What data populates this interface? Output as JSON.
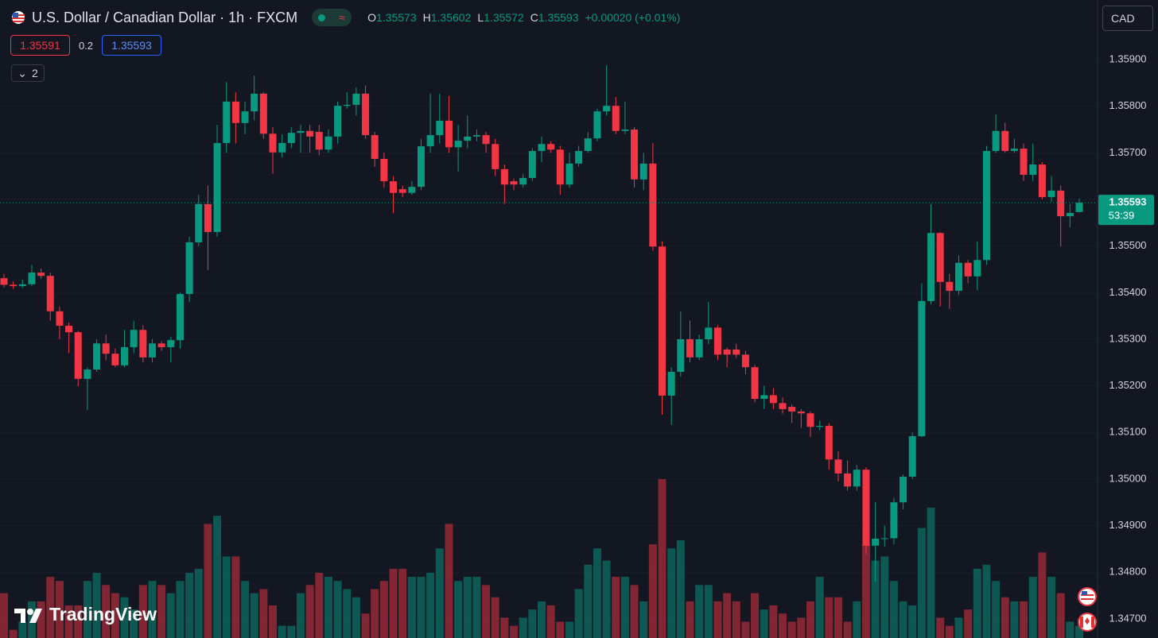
{
  "header": {
    "title": "U.S. Dollar / Canadian Dollar · 1h · FXCM",
    "ohlc": [
      {
        "label": "O",
        "value": 1.35573
      },
      {
        "label": "H",
        "value": 1.35602
      },
      {
        "label": "L",
        "value": 1.35572
      },
      {
        "label": "C",
        "value": 1.35593
      }
    ],
    "change": "+0.00020 (+0.01%)",
    "bid": 1.35591,
    "spread": 0.2,
    "ask": 1.35593,
    "indicators": 2,
    "currency": "CAD",
    "logo": "TradingView"
  },
  "chart_data": {
    "type": "candlestick",
    "up_color": "#089981",
    "down_color": "#f23645",
    "grid": true,
    "ylim": [
      1.34664,
      1.36028
    ],
    "yticks": [
      {
        "value": 1.359,
        "label": "1.35900"
      },
      {
        "value": 1.358,
        "label": "1.35800"
      },
      {
        "value": 1.357,
        "label": "1.35700"
      },
      {
        "value": 1.356,
        "label": "1.35600"
      },
      {
        "value": 1.355,
        "label": "1.35500"
      },
      {
        "value": 1.354,
        "label": "1.35400"
      },
      {
        "value": 1.353,
        "label": "1.35300"
      },
      {
        "value": 1.352,
        "label": "1.35200"
      },
      {
        "value": 1.351,
        "label": "1.35100"
      },
      {
        "value": 1.35,
        "label": "1.35000"
      },
      {
        "value": 1.349,
        "label": "1.34900"
      },
      {
        "value": 1.348,
        "label": "1.34800"
      },
      {
        "value": 1.347,
        "label": "1.34700"
      }
    ],
    "last_price": {
      "value": 1.35593,
      "countdown": "53:39"
    },
    "open": [
      1.35431,
      1.35417,
      1.35414,
      1.35418,
      1.35443,
      1.35436,
      1.3536,
      1.35329,
      1.35315,
      1.35215,
      1.35235,
      1.35291,
      1.35269,
      1.35244,
      1.35283,
      1.3532,
      1.35261,
      1.35291,
      1.35283,
      1.35298,
      1.35397,
      1.35508,
      1.3559,
      1.3553,
      1.35721,
      1.3581,
      1.35764,
      1.35789,
      1.35827,
      1.35741,
      1.35701,
      1.35721,
      1.35743,
      1.35747,
      1.35745,
      1.35707,
      1.35735,
      1.35801,
      1.35803,
      1.35827,
      1.35738,
      1.35687,
      1.35639,
      1.35622,
      1.35614,
      1.35627,
      1.35714,
      1.35738,
      1.35769,
      1.35712,
      1.35726,
      1.35735,
      1.35738,
      1.35719,
      1.35665,
      1.35639,
      1.35632,
      1.35646,
      1.35704,
      1.35719,
      1.35707,
      1.35632,
      1.35677,
      1.35704,
      1.35731,
      1.35789,
      1.35801,
      1.35747,
      1.3575,
      1.35643,
      1.35677,
      1.35499,
      1.35179,
      1.3523,
      1.353,
      1.35261,
      1.353,
      1.35325,
      1.35278,
      1.35278,
      1.35267,
      1.3524,
      1.35172,
      1.3518,
      1.35163,
      1.35155,
      1.35145,
      1.35141,
      1.35112,
      1.35114,
      1.35042,
      1.35012,
      1.34984,
      1.3502,
      1.34857,
      1.34872,
      1.34873,
      1.3495,
      1.35005,
      1.35092,
      1.35382,
      1.35528,
      1.35423,
      1.35404,
      1.35464,
      1.35435,
      1.3547,
      1.35704,
      1.35747,
      1.35704,
      1.35709,
      1.35653,
      1.35675,
      1.35605,
      1.35619,
      1.35564,
      1.35573
    ],
    "high": [
      1.3544,
      1.35424,
      1.35428,
      1.3546,
      1.35452,
      1.35443,
      1.3537,
      1.35336,
      1.35318,
      1.3524,
      1.353,
      1.3531,
      1.3528,
      1.3532,
      1.3534,
      1.3533,
      1.353,
      1.35296,
      1.35305,
      1.354,
      1.3552,
      1.3561,
      1.3563,
      1.3576,
      1.35852,
      1.3583,
      1.3581,
      1.35866,
      1.3583,
      1.35755,
      1.3574,
      1.35755,
      1.3576,
      1.3576,
      1.3576,
      1.3575,
      1.3581,
      1.3583,
      1.3584,
      1.35845,
      1.35745,
      1.357,
      1.3565,
      1.3563,
      1.3564,
      1.3573,
      1.35827,
      1.35827,
      1.35822,
      1.3576,
      1.3578,
      1.3575,
      1.35745,
      1.3573,
      1.35675,
      1.35645,
      1.35655,
      1.3571,
      1.35735,
      1.35725,
      1.35715,
      1.357,
      1.35715,
      1.35745,
      1.35795,
      1.35888,
      1.3582,
      1.3581,
      1.35755,
      1.357,
      1.35721,
      1.3551,
      1.3524,
      1.3536,
      1.3534,
      1.3531,
      1.3538,
      1.3533,
      1.35282,
      1.3529,
      1.35275,
      1.35245,
      1.352,
      1.35195,
      1.35175,
      1.3516,
      1.3515,
      1.35145,
      1.35125,
      1.3512,
      1.3506,
      1.3504,
      1.3503,
      1.35025,
      1.3495,
      1.349,
      1.3496,
      1.3501,
      1.351,
      1.3542,
      1.3559,
      1.3553,
      1.3544,
      1.3548,
      1.3547,
      1.3551,
      1.35715,
      1.35783,
      1.35765,
      1.3573,
      1.3572,
      1.3572,
      1.3568,
      1.3565,
      1.3563,
      1.3559,
      1.35602
    ],
    "low": [
      1.35411,
      1.35408,
      1.3541,
      1.35414,
      1.3543,
      1.3534,
      1.353,
      1.3527,
      1.35199,
      1.35148,
      1.3523,
      1.35255,
      1.3524,
      1.3524,
      1.3527,
      1.3525,
      1.3525,
      1.35275,
      1.3525,
      1.3528,
      1.3538,
      1.355,
      1.35448,
      1.3552,
      1.357,
      1.3572,
      1.3574,
      1.3577,
      1.3573,
      1.35655,
      1.3569,
      1.3571,
      1.357,
      1.357,
      1.35695,
      1.357,
      1.3572,
      1.35795,
      1.3578,
      1.3573,
      1.3567,
      1.35625,
      1.3557,
      1.35605,
      1.3561,
      1.3562,
      1.357,
      1.3572,
      1.357,
      1.3566,
      1.3571,
      1.35725,
      1.357,
      1.3565,
      1.3559,
      1.3562,
      1.35625,
      1.3564,
      1.3568,
      1.357,
      1.3561,
      1.35625,
      1.3567,
      1.357,
      1.35725,
      1.3578,
      1.3574,
      1.3574,
      1.35625,
      1.3562,
      1.3549,
      1.35138,
      1.35116,
      1.3522,
      1.3525,
      1.35255,
      1.3529,
      1.35255,
      1.3524,
      1.3526,
      1.35225,
      1.35165,
      1.3515,
      1.3515,
      1.3514,
      1.3512,
      1.3511,
      1.3509,
      1.35105,
      1.3502,
      1.34995,
      1.34975,
      1.34975,
      1.3484,
      1.3478,
      1.34855,
      1.3486,
      1.34935,
      1.35,
      1.3509,
      1.35375,
      1.3537,
      1.35365,
      1.35395,
      1.3542,
      1.35405,
      1.3546,
      1.357,
      1.357,
      1.357,
      1.3564,
      1.3564,
      1.356,
      1.35595,
      1.35499,
      1.3554,
      1.35572
    ],
    "close": [
      1.35417,
      1.35414,
      1.35418,
      1.35443,
      1.35436,
      1.3536,
      1.35329,
      1.35315,
      1.35215,
      1.35235,
      1.35291,
      1.35269,
      1.35244,
      1.35283,
      1.3532,
      1.35261,
      1.35291,
      1.35283,
      1.35298,
      1.35397,
      1.35508,
      1.3559,
      1.3553,
      1.35721,
      1.3581,
      1.35764,
      1.35789,
      1.35827,
      1.35741,
      1.35701,
      1.35721,
      1.35743,
      1.35747,
      1.35735,
      1.35707,
      1.35735,
      1.35801,
      1.35803,
      1.35827,
      1.35738,
      1.35687,
      1.35639,
      1.35614,
      1.35614,
      1.35627,
      1.35714,
      1.35738,
      1.35769,
      1.35712,
      1.35726,
      1.35735,
      1.35738,
      1.35719,
      1.35665,
      1.35632,
      1.35632,
      1.35646,
      1.35704,
      1.35719,
      1.35707,
      1.35632,
      1.35677,
      1.35704,
      1.35731,
      1.35789,
      1.35801,
      1.35747,
      1.3575,
      1.35643,
      1.35677,
      1.35499,
      1.35179,
      1.3523,
      1.353,
      1.35261,
      1.353,
      1.35325,
      1.35267,
      1.35267,
      1.35267,
      1.3524,
      1.35172,
      1.3518,
      1.35163,
      1.3515,
      1.35145,
      1.35141,
      1.35112,
      1.35114,
      1.35042,
      1.35012,
      1.34984,
      1.3502,
      1.34857,
      1.34872,
      1.34873,
      1.3495,
      1.35005,
      1.35092,
      1.35382,
      1.35528,
      1.35423,
      1.35404,
      1.35464,
      1.35435,
      1.3547,
      1.35704,
      1.35747,
      1.35704,
      1.35709,
      1.35653,
      1.35675,
      1.35605,
      1.35619,
      1.35564,
      1.35571,
      1.35593
    ],
    "volume": [
      55,
      10,
      20,
      45,
      45,
      75,
      70,
      40,
      40,
      70,
      80,
      65,
      55,
      50,
      35,
      65,
      70,
      65,
      55,
      70,
      80,
      85,
      140,
      150,
      100,
      100,
      70,
      55,
      60,
      40,
      15,
      15,
      55,
      65,
      80,
      75,
      70,
      60,
      50,
      30,
      60,
      70,
      85,
      85,
      75,
      75,
      80,
      110,
      140,
      70,
      75,
      75,
      65,
      50,
      25,
      15,
      25,
      35,
      45,
      40,
      20,
      20,
      60,
      90,
      110,
      95,
      75,
      75,
      65,
      45,
      115,
      195,
      110,
      120,
      45,
      65,
      65,
      45,
      55,
      45,
      20,
      55,
      35,
      40,
      30,
      20,
      25,
      45,
      75,
      50,
      50,
      20,
      45,
      115,
      95,
      100,
      70,
      45,
      40,
      135,
      160,
      25,
      15,
      25,
      35,
      85,
      90,
      70,
      50,
      45,
      45,
      75,
      105,
      75,
      55,
      20,
      15
    ]
  }
}
